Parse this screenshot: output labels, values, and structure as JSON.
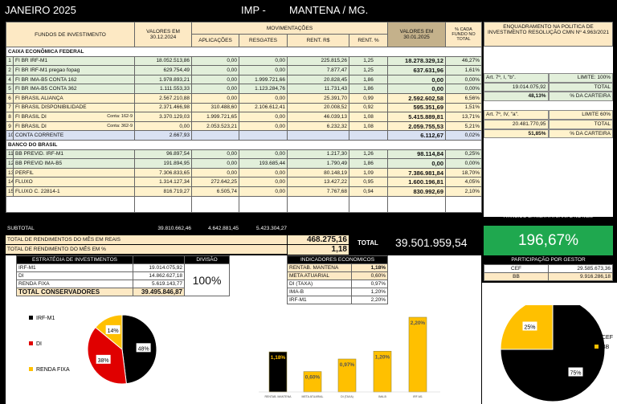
{
  "title": "JANEIRO 2025",
  "imp": "IMP -",
  "city": "MANTENA / MG.",
  "headers": {
    "fundos": "FUNDOS DE INVESTIMENTO",
    "valores_ini": "VALORES EM 30.12.2024",
    "movimentacoes": "MOVIMENTAÇÕES",
    "aplicacoes": "APLICAÇÕES",
    "resgates": "RESGATES",
    "rent_rs": "RENT. R$",
    "rent_pct": "RENT. %",
    "valores_fim": "VALORES EM 30.01.2025",
    "pct_total": "% CADA FUNDO NO TOTAL",
    "enquadramento": "ENQUADRAMENTO NA POLITICA DE INVESTIMENTO RESOLUÇÃO CMN Nº 4.963/2021"
  },
  "sections": [
    {
      "name": "CAIXA ECONÔMICA FEDERAL",
      "rows": [
        {
          "n": "1",
          "fund": "FI BR IRF-M1",
          "conta": "",
          "ini": "18.052.513,86",
          "apl": "0,00",
          "resg": "0,00",
          "rrs": "225.815,26",
          "rp": "1,25",
          "fim": "18.278.329,12",
          "pct": "46,27%",
          "c": "g"
        },
        {
          "n": "2",
          "fund": "FI BR IRF-M1 pregao fopag",
          "conta": "",
          "ini": "629.754,49",
          "apl": "0,00",
          "resg": "0,00",
          "rrs": "7.877,47",
          "rp": "1,25",
          "fim": "637.631,96",
          "pct": "1,61%",
          "c": "g"
        },
        {
          "n": "4",
          "fund": "FI BR IMA-B5 CONTA 162",
          "conta": "",
          "ini": "1.978.893,21",
          "apl": "0,00",
          "resg": "1.999.721,66",
          "rrs": "20.828,45",
          "rp": "1,86",
          "fim": "0,00",
          "pct": "0,00%",
          "c": "g"
        },
        {
          "n": "5",
          "fund": "FI BR IMA-B5 CONTA 362",
          "conta": "",
          "ini": "1.111.553,33",
          "apl": "0,00",
          "resg": "1.123.284,76",
          "rrs": "11.731,43",
          "rp": "1,86",
          "fim": "0,00",
          "pct": "0,00%",
          "c": "g"
        },
        {
          "n": "6",
          "fund": "FI BRASIL ALIANÇA",
          "conta": "",
          "ini": "2.567.210,88",
          "apl": "0,00",
          "resg": "0,00",
          "rrs": "25.391,70",
          "rp": "0,99",
          "fim": "2.592.602,58",
          "pct": "6,56%",
          "c": "y"
        },
        {
          "n": "7",
          "fund": "FI BRASIL DISPONIBILIDADE",
          "conta": "",
          "ini": "2.371.466,98",
          "apl": "310.488,60",
          "resg": "2.106.612,41",
          "rrs": "20.008,52",
          "rp": "0,92",
          "fim": "595.351,69",
          "pct": "1,51%",
          "c": "y"
        },
        {
          "n": "8",
          "fund": "FI BRASIL DI",
          "conta": "Conta: 162-9",
          "ini": "3.370.129,03",
          "apl": "1.999.721,65",
          "resg": "0,00",
          "rrs": "46.039,13",
          "rp": "1,08",
          "fim": "5.415.889,81",
          "pct": "13,71%",
          "c": "y"
        },
        {
          "n": "9",
          "fund": "FI BRASIL DI",
          "conta": "Conta: 362-9",
          "ini": "0,00",
          "apl": "2.053.523,21",
          "resg": "0,00",
          "rrs": "6.232,32",
          "rp": "1,08",
          "fim": "2.059.755,53",
          "pct": "5,21%",
          "c": "y"
        },
        {
          "n": "10",
          "fund": "CONTA CORRENTE",
          "conta": "",
          "ini": "2.667,93",
          "apl": "",
          "resg": "",
          "rrs": "",
          "rp": "",
          "fim": "6.112,67",
          "pct": "0,02%",
          "c": "b"
        }
      ]
    },
    {
      "name": "BANCO DO BRASIL",
      "rows": [
        {
          "n": "11",
          "fund": "BB PREVID. IRF-M1",
          "conta": "",
          "ini": "96.897,54",
          "apl": "0,00",
          "resg": "0,00",
          "rrs": "1.217,30",
          "rp": "1,26",
          "fim": "98.114,84",
          "pct": "0,25%",
          "c": "g"
        },
        {
          "n": "12",
          "fund": "BB PREVID IMA-B5",
          "conta": "",
          "ini": "191.894,95",
          "apl": "0,00",
          "resg": "193.685,44",
          "rrs": "1.790,49",
          "rp": "1,86",
          "fim": "0,00",
          "pct": "0,00%",
          "c": "g"
        },
        {
          "n": "13",
          "fund": "PERFIL",
          "conta": "",
          "ini": "7.306.833,65",
          "apl": "0,00",
          "resg": "0,00",
          "rrs": "80.148,19",
          "rp": "1,09",
          "fim": "7.386.981,84",
          "pct": "18,70%",
          "c": "y"
        },
        {
          "n": "14",
          "fund": "FLUXO",
          "conta": "",
          "ini": "1.314.127,34",
          "apl": "272.642,25",
          "resg": "0,00",
          "rrs": "13.427,22",
          "rp": "0,95",
          "fim": "1.600.196,81",
          "pct": "4,05%",
          "c": "y"
        },
        {
          "n": "15",
          "fund": "FLUXO  C. 22814-1",
          "conta": "",
          "ini": "816.719,27",
          "apl": "6.505,74",
          "resg": "0,00",
          "rrs": "7.767,68",
          "rp": "0,94",
          "fim": "830.992,69",
          "pct": "2,10%",
          "c": "y"
        }
      ]
    }
  ],
  "enq": {
    "a1": "Art. 7º, I, \"b\".",
    "a1lim": "LIMITE: 100%",
    "a1tot": "19.014.075,92",
    "a1totl": "TOTAL",
    "a1pct": "48,13%",
    "a1pctl": "% DA CARTEIRA",
    "a2": "Art. 7º, IV, \"a\".",
    "a2lim": "LIMITE 60%",
    "a2tot": "20.481.770,95",
    "a2totl": "TOTAL",
    "a2pct": "51,85%",
    "a2pctl": "% DA CARTEIRA"
  },
  "subtotal": {
    "label": "SUBTOTAL",
    "ini": "39.810.662,46",
    "apl": "4.642.881,45",
    "resg": "5.423.304,27"
  },
  "rend_reais": {
    "label": "TOTAL DE RENDIMENTOS DO MÊS EM REAIS",
    "value": "468.275,16"
  },
  "rend_pct": {
    "label": "TOTAL DE RENDIMENTO DO MÊS EM %",
    "value": "1,18"
  },
  "total": {
    "label": "TOTAL",
    "value": "39.501.959,54"
  },
  "meta": {
    "label": "ATINGIDO DA META ATUARIAL NO MÊS",
    "value": "196,67%",
    "color": "#1fa84f"
  },
  "gestor": {
    "label": "PARTICIPAÇÃO POR GESTOR",
    "rows": [
      {
        "name": "CEF",
        "value": "29.585.673,36"
      },
      {
        "name": "BB",
        "value": "9.916.286,18"
      }
    ]
  },
  "estrategia": {
    "label": "ESTRATÉGIA DE INVESTIMENTOS",
    "divisao": "DIVISÃO",
    "divisao_value": "100%",
    "rows": [
      {
        "name": "IRF-M1",
        "value": "19.014.075,92"
      },
      {
        "name": "DI",
        "value": "14.862.627,18"
      },
      {
        "name": "RENDA FIXA",
        "value": "5.619.143,77"
      }
    ],
    "total_label": "TOTAL CONSERVADORES",
    "total_value": "39.495.846,87"
  },
  "indicadores": {
    "label": "INDICADORES ECONOMICOS",
    "rows": [
      {
        "name": "RENTAB.  MANTENA",
        "value": "1,18%"
      },
      {
        "name": "META ATUARIAL",
        "value": "0,60%"
      },
      {
        "name": "DI (TAXA)",
        "value": "0,97%"
      },
      {
        "name": "IMA-B",
        "value": "1,20%"
      },
      {
        "name": "IRF-M1",
        "value": "2,20%"
      }
    ]
  },
  "chart_data": [
    {
      "type": "pie",
      "legend": "left",
      "slices": [
        {
          "name": "IRF-M1",
          "value": 48,
          "label": "48%",
          "color": "#000000"
        },
        {
          "name": "DI",
          "value": 38,
          "label": "38%",
          "color": "#e00000"
        },
        {
          "name": "RENDA FIXA",
          "value": 14,
          "label": "14%",
          "color": "#ffc000"
        }
      ]
    },
    {
      "type": "bar",
      "categories": [
        "RENTAB.  MANTENA",
        "META ATUARIAL",
        "DI (TAXA)",
        "IMA-B",
        "IRF-M1"
      ],
      "values": [
        1.18,
        0.6,
        0.97,
        1.2,
        2.2
      ],
      "labels": [
        "1,18%",
        "0,60%",
        "0,97%",
        "1,20%",
        "2,20%"
      ],
      "colors": [
        "#000000",
        "#ffc000",
        "#ffc000",
        "#ffc000",
        "#ffc000"
      ]
    },
    {
      "type": "pie",
      "legend": "right",
      "slices": [
        {
          "name": "CEF",
          "value": 75,
          "label": "75%",
          "color": "#000000"
        },
        {
          "name": "BB",
          "value": 25,
          "label": "25%",
          "color": "#ffc000"
        }
      ]
    }
  ]
}
